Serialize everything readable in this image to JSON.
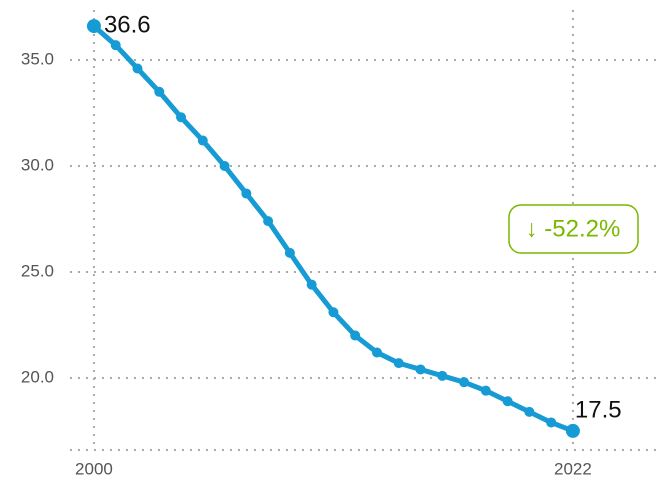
{
  "chart_data": {
    "type": "line",
    "x": [
      2000,
      2001,
      2002,
      2003,
      2004,
      2005,
      2006,
      2007,
      2008,
      2009,
      2010,
      2011,
      2012,
      2013,
      2014,
      2015,
      2016,
      2017,
      2018,
      2019,
      2020,
      2021,
      2022
    ],
    "series": [
      {
        "color": "#169bd5",
        "values": [
          36.6,
          35.7,
          34.6,
          33.5,
          32.3,
          31.2,
          30.0,
          28.7,
          27.4,
          25.9,
          24.4,
          23.1,
          22.0,
          21.2,
          20.7,
          20.4,
          20.1,
          19.8,
          19.4,
          18.9,
          18.4,
          17.9,
          17.5
        ]
      }
    ],
    "xlim": [
      1998.9,
      2026
    ],
    "xticks": [
      2000,
      2022
    ],
    "ylim": [
      16.6,
      37.36
    ],
    "yticks": [
      {
        "value": 20,
        "label": "20.0"
      },
      {
        "value": 25,
        "label": "25.0"
      },
      {
        "value": 30,
        "label": "30.0"
      },
      {
        "value": 35,
        "label": "35.0"
      }
    ],
    "grid": true,
    "annotation": {
      "text": "↓ -52.2%",
      "color": "#7ab800"
    }
  }
}
